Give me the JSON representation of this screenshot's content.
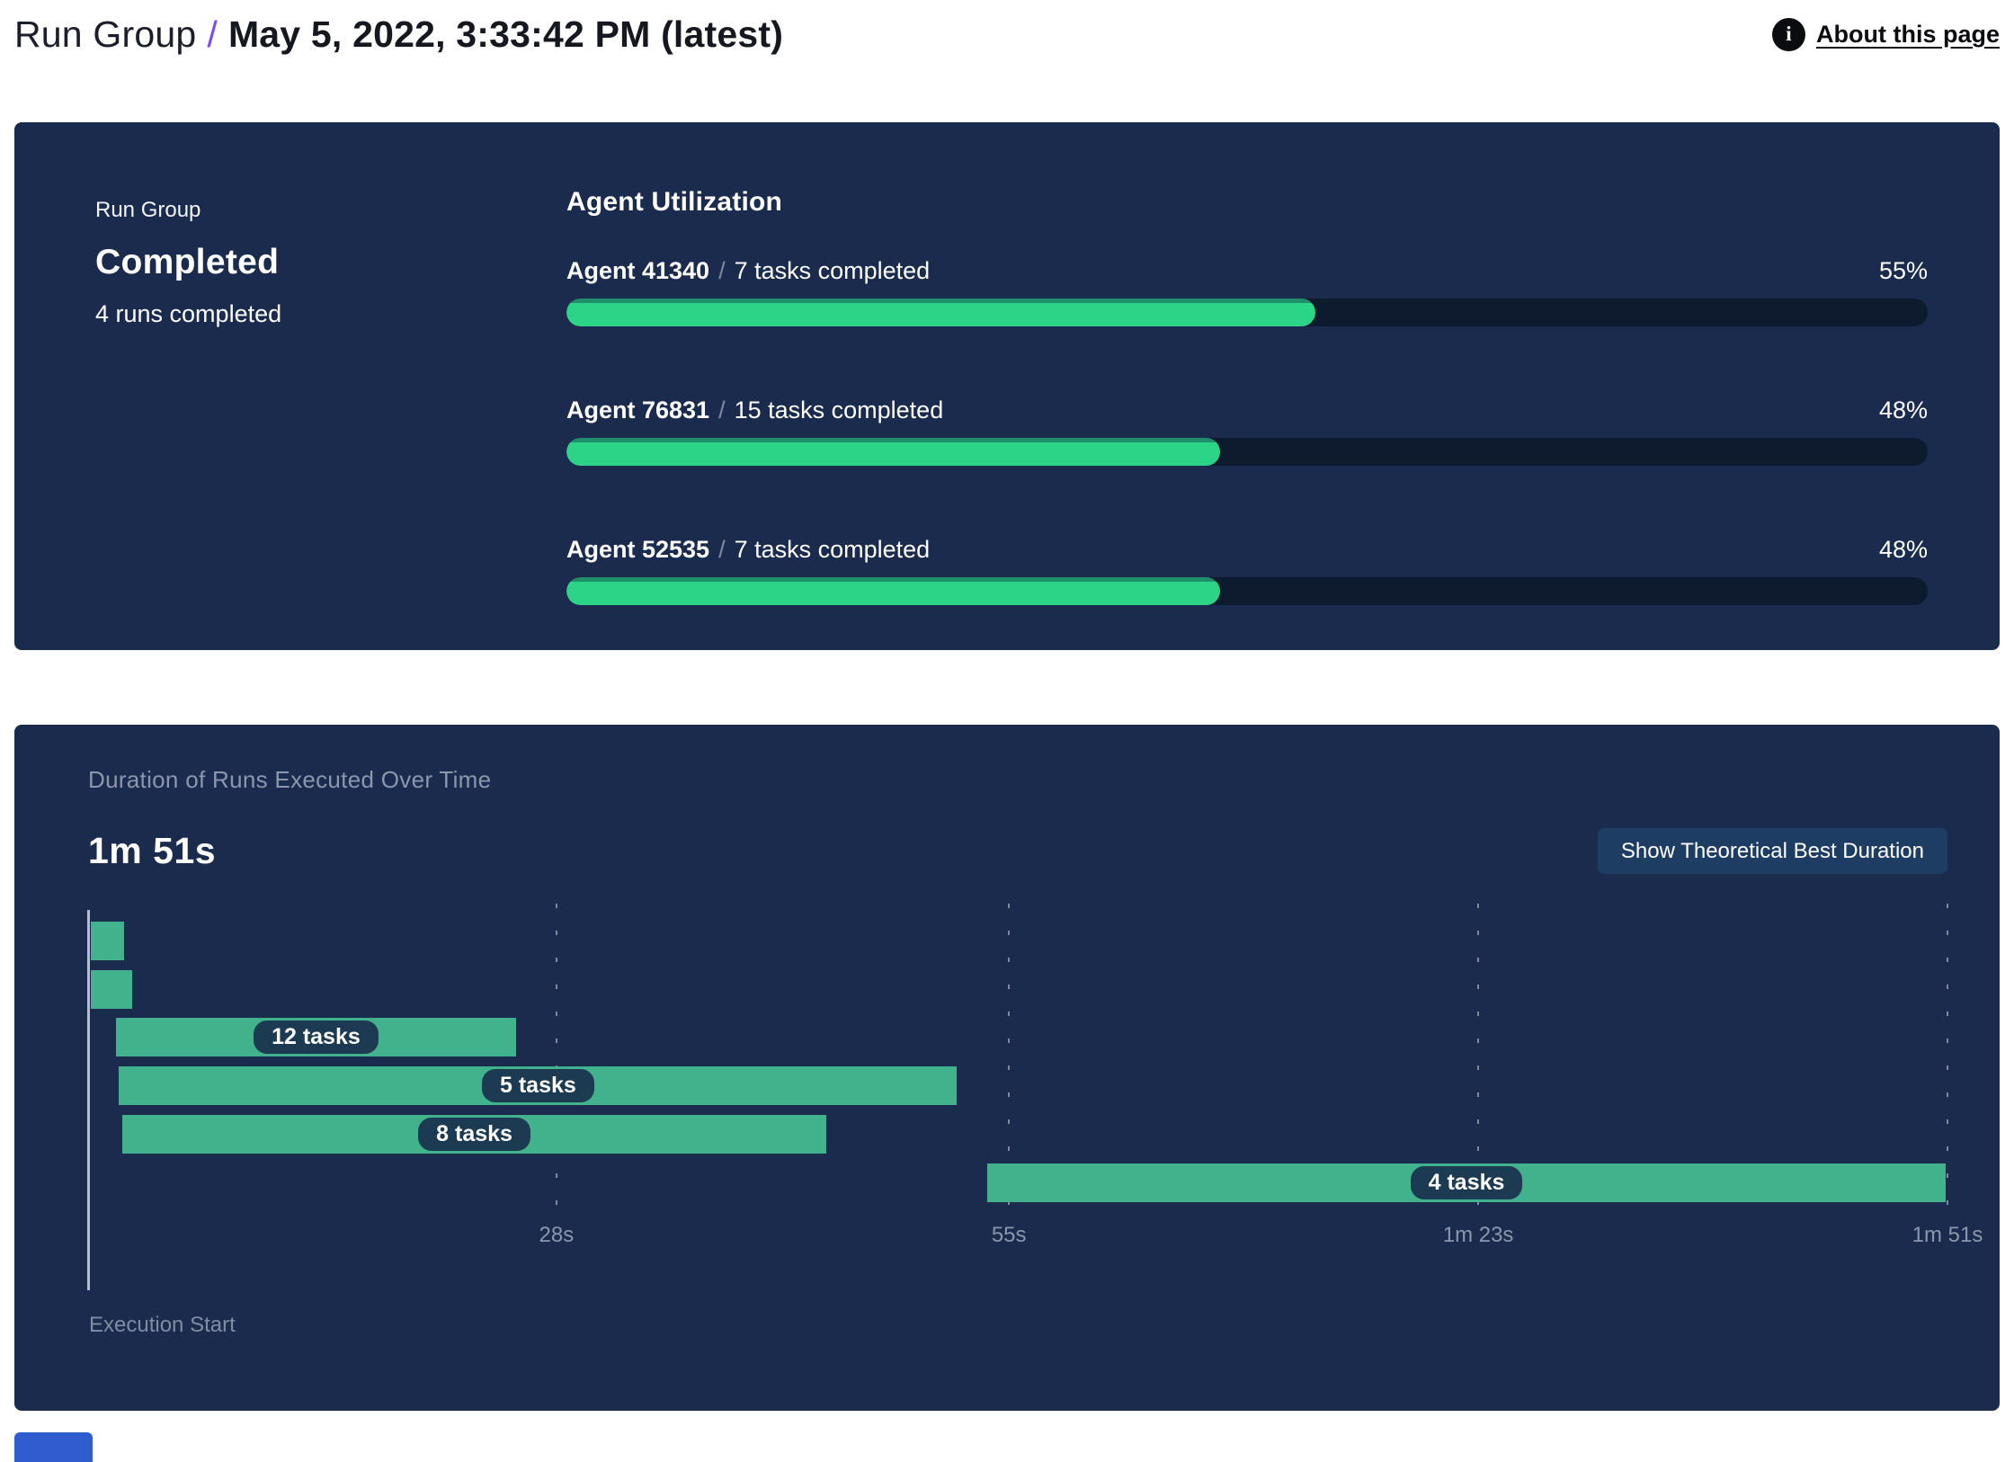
{
  "header": {
    "breadcrumb_root": "Run Group",
    "breadcrumb_separator": "/",
    "title": "May 5, 2022, 3:33:42 PM (latest)",
    "about_link_label": "About this page",
    "info_icon_glyph": "i"
  },
  "summary_card": {
    "label": "Run Group",
    "status": "Completed",
    "runs_completed": "4 runs completed",
    "utilization": {
      "title": "Agent Utilization",
      "separator": "/",
      "agents": [
        {
          "name": "Agent 41340",
          "detail": "7 tasks completed",
          "percent_label": "55%",
          "percent_value": 55
        },
        {
          "name": "Agent 76831",
          "detail": "15 tasks completed",
          "percent_label": "48%",
          "percent_value": 48
        },
        {
          "name": "Agent 52535",
          "detail": "7 tasks completed",
          "percent_label": "48%",
          "percent_value": 48
        }
      ]
    }
  },
  "duration_card": {
    "subtitle": "Duration of Runs Executed Over Time",
    "total_duration": "1m 51s",
    "button_label": "Show Theoretical Best Duration",
    "execution_start_label": "Execution Start"
  },
  "chart_data": {
    "type": "bar",
    "title": "Duration of Runs Executed Over Time",
    "xlabel": "Execution Start",
    "ylabel": "",
    "axis_max_seconds": 111,
    "tick_seconds": [
      28,
      55,
      83,
      111
    ],
    "tick_labels": [
      "28s",
      "55s",
      "1m 23s",
      "1m 51s"
    ],
    "grid": "dotted-vertical",
    "bar_color": "#41b28c",
    "runs": [
      {
        "label": "",
        "start_s": 0.2,
        "end_s": 2.2
      },
      {
        "label": "",
        "start_s": 0.2,
        "end_s": 2.7
      },
      {
        "label": "12 tasks",
        "start_s": 1.7,
        "end_s": 25.6
      },
      {
        "label": "5 tasks",
        "start_s": 1.9,
        "end_s": 51.9
      },
      {
        "label": "8 tasks",
        "start_s": 2.1,
        "end_s": 44.1
      },
      {
        "label": "4 tasks",
        "start_s": 53.7,
        "end_s": 110.9
      }
    ]
  },
  "colors": {
    "card_background": "#1a2b4d",
    "progress_fill": "#2bd487",
    "progress_fill_edge": "#1e8f68",
    "progress_track": "#0e1b2f",
    "gantt_bar": "#41b28c",
    "task_pill": "#1c3a52",
    "accent_slash": "#7a4af2",
    "muted_text": "#8a97ac",
    "button_background": "#1e3d63",
    "cutoff_element_blue": "#2f5cce"
  }
}
